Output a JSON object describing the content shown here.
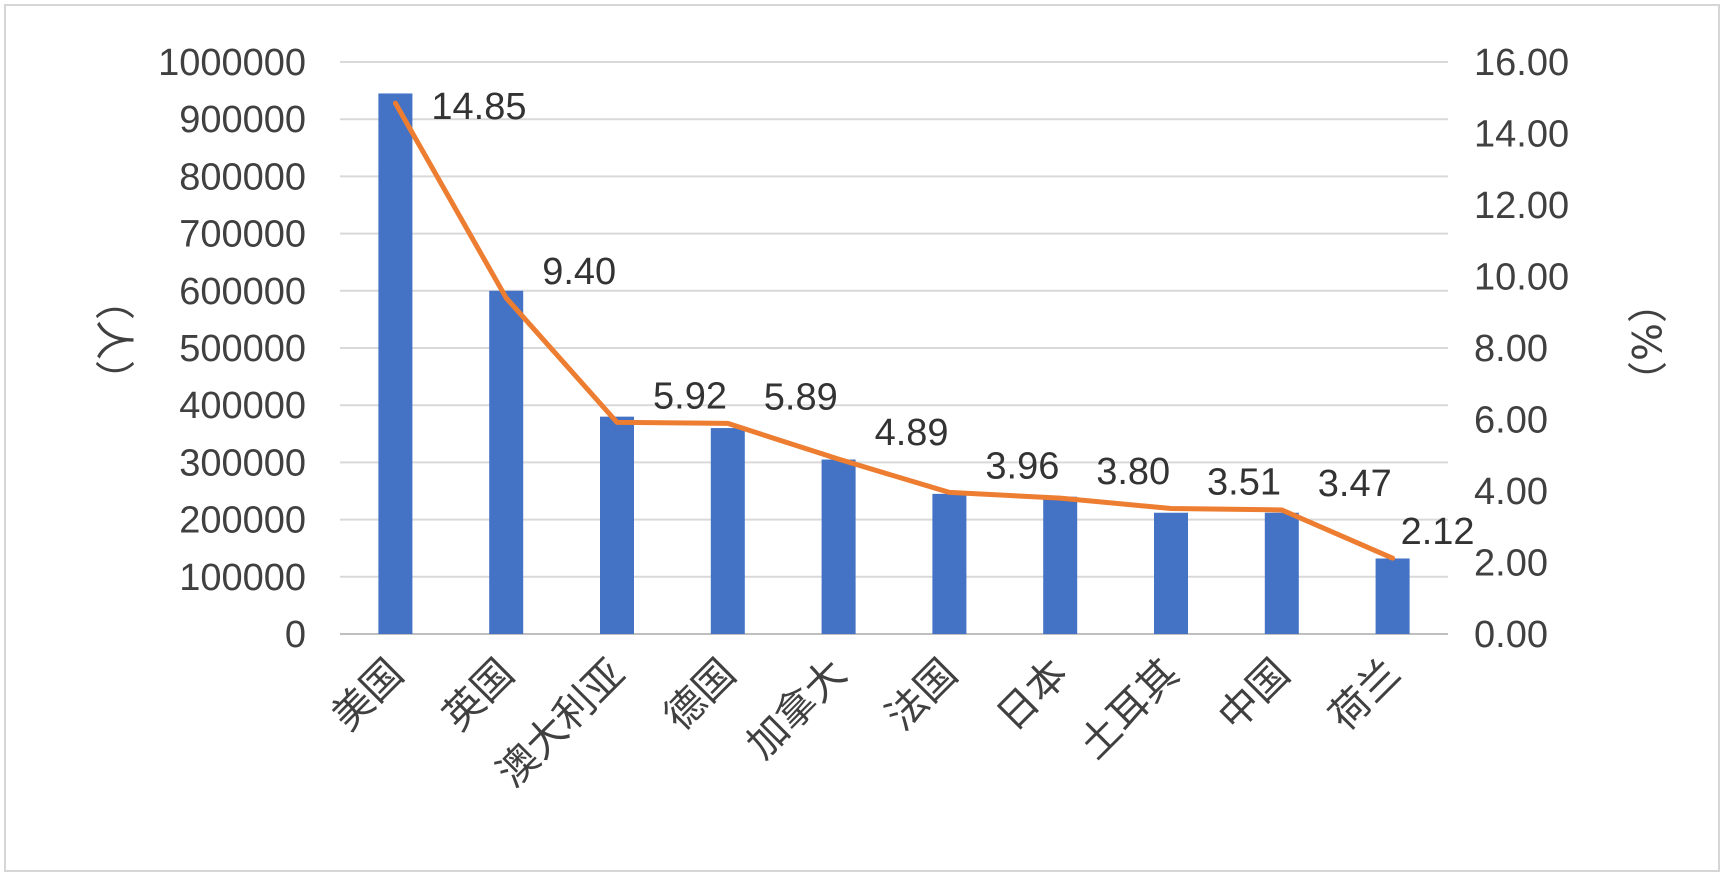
{
  "chart_data": {
    "type": "bar",
    "categories": [
      "美国",
      "英国",
      "澳大利亚",
      "德国",
      "加拿大",
      "法国",
      "日本",
      "土耳其",
      "中国",
      "荷兰"
    ],
    "series": [
      {
        "type": "bar",
        "axis": "left",
        "color": "#4472C4",
        "values": [
          945000,
          600000,
          380000,
          360000,
          305000,
          245000,
          240000,
          212000,
          212000,
          132000
        ]
      },
      {
        "type": "line",
        "axis": "right",
        "color": "#ED7D31",
        "values": [
          14.85,
          9.4,
          5.92,
          5.89,
          4.89,
          3.96,
          3.8,
          3.51,
          3.47,
          2.12
        ],
        "data_labels": [
          "14.85",
          "9.40",
          "5.92",
          "5.89",
          "4.89",
          "3.96",
          "3.80",
          "3.51",
          "3.47",
          "2.12"
        ]
      }
    ],
    "y_left": {
      "label": "（人）",
      "min": 0,
      "max": 1000000,
      "ticks": [
        "0",
        "100000",
        "200000",
        "300000",
        "400000",
        "500000",
        "600000",
        "700000",
        "800000",
        "900000",
        "1000000"
      ]
    },
    "y_right": {
      "label": "（%）",
      "min": 0,
      "max": 16,
      "ticks": [
        "0.00",
        "2.00",
        "4.00",
        "6.00",
        "8.00",
        "10.00",
        "12.00",
        "14.00",
        "16.00"
      ]
    },
    "grid": true,
    "legend": "none"
  }
}
